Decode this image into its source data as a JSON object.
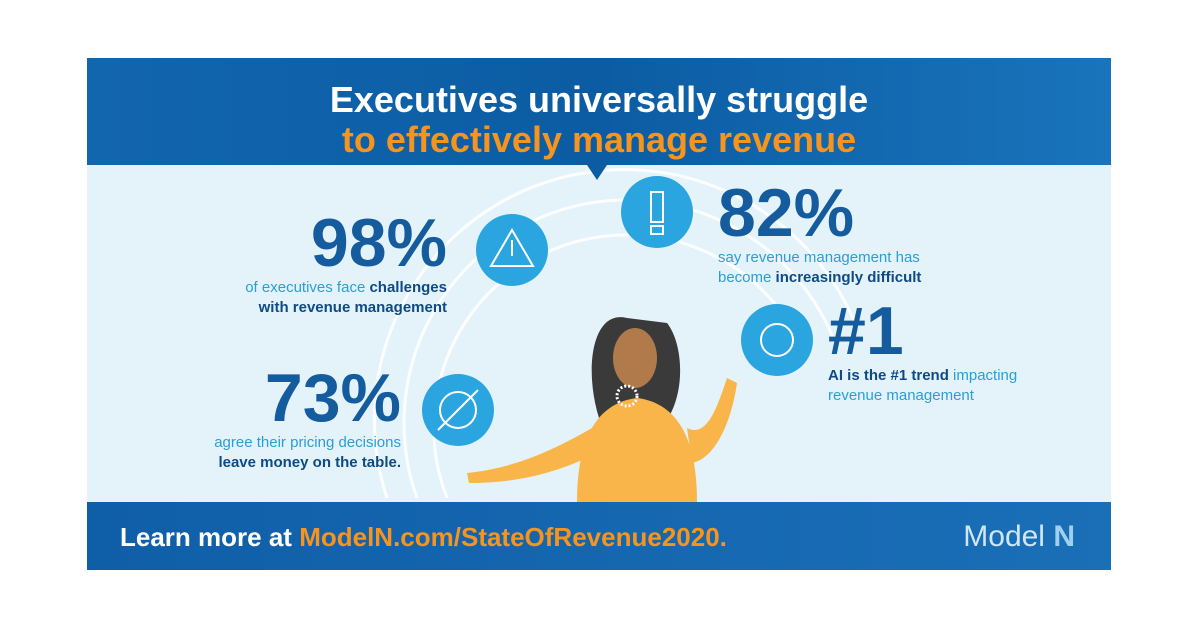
{
  "header": {
    "title_line1": "Executives universally struggle",
    "title_line2": "to effectively manage revenue"
  },
  "stats": [
    {
      "value": "98%",
      "lines": [
        [
          {
            "text": "of executives face ",
            "style": "light"
          },
          {
            "text": "challenges",
            "style": "bold"
          }
        ],
        [
          {
            "text": "with revenue management",
            "style": "bold"
          }
        ]
      ]
    },
    {
      "value": "82%",
      "lines": [
        [
          {
            "text": "say revenue management has",
            "style": "light"
          }
        ],
        [
          {
            "text": "become ",
            "style": "light"
          },
          {
            "text": "increasingly difficult",
            "style": "bold"
          }
        ]
      ]
    },
    {
      "value": "#1",
      "lines": [
        [
          {
            "text": "AI is the #1 trend",
            "style": "bold"
          },
          {
            "text": " impacting",
            "style": "light"
          }
        ],
        [
          {
            "text": "revenue management",
            "style": "light"
          }
        ]
      ]
    },
    {
      "value": "73%",
      "lines": [
        [
          {
            "text": "agree their pricing decisions",
            "style": "light"
          }
        ],
        [
          {
            "text": "leave money on the table.",
            "style": "bold"
          }
        ]
      ]
    }
  ],
  "footer": {
    "prefix": "Learn more at",
    "link": "ModelN.com/StateOfRevenue2020.",
    "logo_word": "Model",
    "logo_letter": "N"
  }
}
